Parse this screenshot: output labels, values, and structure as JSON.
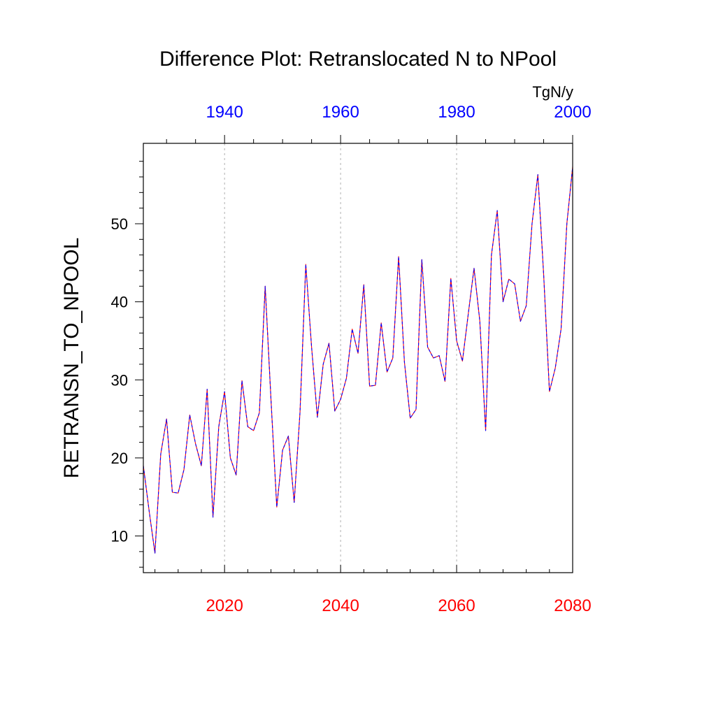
{
  "chart_data": {
    "type": "line",
    "title": "Difference Plot: Retranslocated N to NPool",
    "ylabel": "RETRANSN_TO_NPOOL",
    "units": "TgN/y",
    "xlim": [
      2006,
      2080
    ],
    "ylim": [
      5.3,
      60.3
    ],
    "bottom_axis": {
      "color": "#ff0000",
      "ticks": [
        2020,
        2040,
        2060,
        2080
      ],
      "tick_labels": [
        "2020",
        "2040",
        "2060",
        "2080"
      ]
    },
    "top_axis": {
      "color": "#0000ff",
      "ticks": [
        1940,
        1960,
        1980,
        2000
      ],
      "tick_labels": [
        "1940",
        "1960",
        "1980",
        "2000"
      ],
      "offset_years": 80
    },
    "y_ticks": [
      10,
      20,
      30,
      40,
      50
    ],
    "y_tick_labels": [
      "10",
      "20",
      "30",
      "40",
      "50"
    ],
    "vertical_gridlines": [
      2020,
      2040,
      2060
    ],
    "x": [
      2006,
      2007,
      2008,
      2009,
      2010,
      2011,
      2012,
      2013,
      2014,
      2015,
      2016,
      2017,
      2018,
      2019,
      2020,
      2021,
      2022,
      2023,
      2024,
      2025,
      2026,
      2027,
      2028,
      2029,
      2030,
      2031,
      2032,
      2033,
      2034,
      2035,
      2036,
      2037,
      2038,
      2039,
      2040,
      2041,
      2042,
      2043,
      2044,
      2045,
      2046,
      2047,
      2048,
      2049,
      2050,
      2051,
      2052,
      2053,
      2054,
      2055,
      2056,
      2057,
      2058,
      2059,
      2060,
      2061,
      2062,
      2063,
      2064,
      2065,
      2066,
      2067,
      2068,
      2069,
      2070,
      2071,
      2072,
      2073,
      2074,
      2075,
      2076,
      2077,
      2078,
      2079,
      2080
    ],
    "series": [
      {
        "name": "overlay-blue",
        "color": "#0000ff",
        "dash": "4,3",
        "values": [
          19.0,
          13.2,
          7.8,
          20.5,
          25.0,
          15.6,
          15.5,
          18.5,
          25.5,
          21.8,
          19.0,
          28.8,
          12.4,
          24.0,
          28.5,
          20.0,
          17.8,
          29.9,
          24.0,
          23.5,
          25.8,
          42.0,
          27.5,
          13.7,
          21.0,
          22.8,
          14.3,
          25.8,
          44.8,
          34.2,
          25.2,
          32.0,
          34.7,
          26.0,
          27.5,
          30.2,
          36.5,
          33.4,
          42.2,
          29.2,
          29.3,
          37.3,
          31.0,
          32.8,
          45.8,
          32.3,
          25.1,
          26.2,
          45.4,
          34.2,
          32.8,
          33.1,
          29.8,
          43.0,
          35.0,
          32.4,
          38.4,
          44.3,
          37.5,
          23.5,
          46.0,
          51.7,
          40.0,
          42.9,
          42.3,
          37.5,
          39.5,
          50.0,
          56.3,
          43.5,
          28.5,
          31.5,
          36.5,
          50.0,
          57.3
        ]
      },
      {
        "name": "line-red",
        "color": "#ff0000",
        "dash": "",
        "values": [
          19.0,
          13.2,
          7.8,
          20.5,
          25.0,
          15.6,
          15.5,
          18.5,
          25.5,
          21.8,
          19.0,
          28.8,
          12.4,
          24.0,
          28.5,
          20.0,
          17.8,
          29.9,
          24.0,
          23.5,
          25.8,
          42.0,
          27.5,
          13.7,
          21.0,
          22.8,
          14.3,
          25.8,
          44.8,
          34.2,
          25.2,
          32.0,
          34.7,
          26.0,
          27.5,
          30.2,
          36.5,
          33.4,
          42.2,
          29.2,
          29.3,
          37.3,
          31.0,
          32.8,
          45.8,
          32.3,
          25.1,
          26.2,
          45.4,
          34.2,
          32.8,
          33.1,
          29.8,
          43.0,
          35.0,
          32.4,
          38.4,
          44.3,
          37.5,
          23.5,
          46.0,
          51.7,
          40.0,
          42.9,
          42.3,
          37.5,
          39.5,
          50.0,
          56.3,
          43.5,
          28.5,
          31.5,
          36.5,
          50.0,
          57.3
        ]
      }
    ]
  }
}
